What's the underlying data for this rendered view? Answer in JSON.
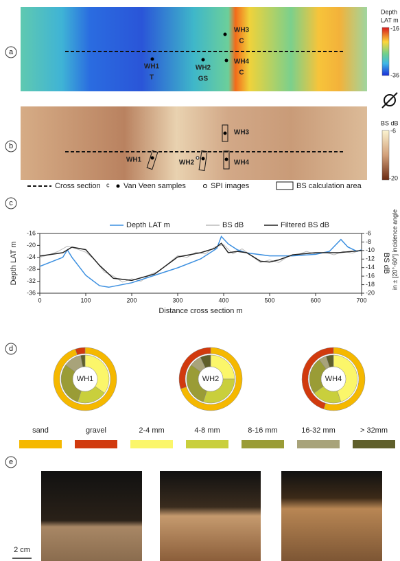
{
  "panel_labels": [
    "a",
    "b",
    "c",
    "d",
    "e"
  ],
  "map_a": {
    "colorbar_title": "Depth",
    "colorbar_unit": "LAT m",
    "colorbar_max": -16,
    "colorbar_min": -36,
    "sites": [
      {
        "name": "WH3",
        "code": "C"
      },
      {
        "name": "WH4",
        "code": "C"
      },
      {
        "name": "WH1",
        "code": "T"
      },
      {
        "name": "WH2",
        "code": "GS"
      }
    ]
  },
  "map_b": {
    "colorbar_title": "BS dB",
    "colorbar_max": -6,
    "colorbar_min": -20,
    "sites": [
      "WH3",
      "WH1",
      "WH2",
      "WH4"
    ]
  },
  "legend": {
    "cross_section": "Cross section",
    "c_marker": "c",
    "van_veen": "Van Veen samples",
    "spi": "SPI images",
    "bs_area": "BS calculation area"
  },
  "chart_data": [
    {
      "type": "line",
      "xlabel": "Distance cross section m",
      "ylabel": "Depth LAT m",
      "y2label": "BS dB",
      "y2sublabel": "in ± [20°-60°] incidence angle",
      "xlim": [
        0,
        700
      ],
      "xticks": [
        0,
        100,
        200,
        300,
        400,
        500,
        600,
        700
      ],
      "ylim": [
        -36,
        -16
      ],
      "yticks": [
        -36,
        -32,
        -28,
        -24,
        -20,
        -16
      ],
      "y2lim": [
        -20,
        -6
      ],
      "y2ticks": [
        -20,
        -18,
        -16,
        -14,
        -12,
        -10,
        -8,
        -6
      ],
      "series": [
        {
          "name": "Depth LAT m",
          "color": "#3b8fe0",
          "x": [
            0,
            50,
            60,
            70,
            100,
            130,
            150,
            200,
            250,
            300,
            350,
            385,
            395,
            410,
            430,
            450,
            500,
            550,
            600,
            630,
            655,
            670,
            690,
            700
          ],
          "values": [
            -27,
            -24,
            -21.5,
            -24,
            -30,
            -33.5,
            -34,
            -32.5,
            -30,
            -27.5,
            -24.5,
            -21,
            -17,
            -19.5,
            -21.5,
            -22.5,
            -23.5,
            -23.5,
            -23,
            -22,
            -18,
            -20.5,
            -22,
            -21.5
          ]
        },
        {
          "name": "BS dB",
          "color": "#bbbbbb",
          "axis": "y2",
          "x": [
            0,
            20,
            40,
            60,
            80,
            100,
            120,
            140,
            160,
            180,
            200,
            220,
            240,
            260,
            280,
            300,
            320,
            340,
            360,
            380,
            400,
            420,
            440,
            460,
            480,
            500,
            520,
            540,
            560,
            580,
            600,
            620,
            640,
            660,
            680,
            700
          ],
          "values": [
            -11.6,
            -11,
            -10.2,
            -9,
            -9.6,
            -10.4,
            -12.2,
            -15,
            -16,
            -17.4,
            -16.6,
            -17.2,
            -15.6,
            -14.8,
            -13,
            -11.2,
            -11.6,
            -10.4,
            -10.8,
            -9.2,
            -8.6,
            -10.8,
            -9.6,
            -11.2,
            -12.8,
            -12.2,
            -12.8,
            -11.4,
            -11,
            -10.2,
            -10.8,
            -10.4,
            -11,
            -10.2,
            -10.6,
            -9.8
          ]
        },
        {
          "name": "Filtered BS dB",
          "color": "#222222",
          "axis": "y2",
          "x": [
            0,
            50,
            70,
            100,
            130,
            160,
            200,
            250,
            300,
            350,
            380,
            395,
            410,
            430,
            450,
            480,
            500,
            520,
            550,
            600,
            650,
            680,
            700
          ],
          "values": [
            -11.3,
            -10.5,
            -9.2,
            -9.8,
            -13.5,
            -16.5,
            -17,
            -15.5,
            -11.5,
            -10.5,
            -9.5,
            -8.3,
            -10.5,
            -10.2,
            -10.5,
            -12.5,
            -12.7,
            -12.2,
            -11,
            -10.5,
            -10.5,
            -10.2,
            -10
          ]
        }
      ]
    },
    {
      "type": "donut",
      "center_label": "WH1",
      "outer_values": [
        95,
        5
      ],
      "inner_values": [
        35,
        20,
        30,
        12,
        3
      ]
    },
    {
      "type": "donut",
      "center_label": "WH2",
      "outer_values": [
        70,
        30
      ],
      "inner_values": [
        25,
        30,
        30,
        8,
        7
      ]
    },
    {
      "type": "donut",
      "center_label": "WH4",
      "outer_values": [
        55,
        45
      ],
      "inner_values": [
        45,
        20,
        25,
        5,
        5
      ]
    }
  ],
  "size_legend": {
    "categories": [
      "sand",
      "gravel",
      "2-4 mm",
      "4-8 mm",
      "8-16 mm",
      "16-32 mm",
      "> 32mm"
    ],
    "colors": [
      "#f5b800",
      "#d13a0e",
      "#fbf66a",
      "#c9cf3c",
      "#9a9c36",
      "#a8a37a",
      "#5f5f2b"
    ]
  },
  "scale_bar": "2 cm"
}
